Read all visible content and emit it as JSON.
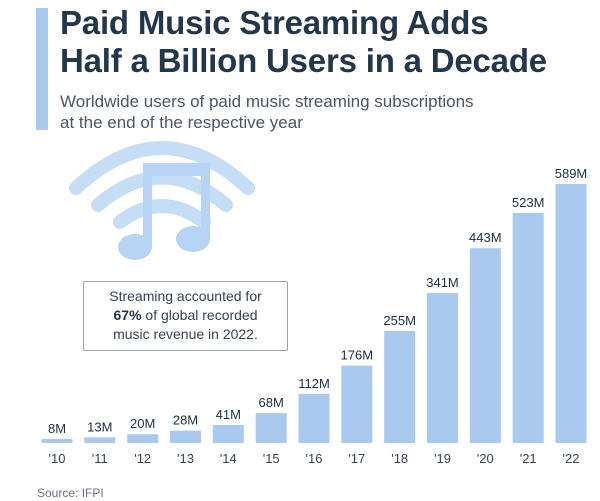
{
  "header": {
    "title_line1": "Paid Music Streaming Adds",
    "title_line2": "Half a Billion Users in a Decade",
    "subtitle_line1": "Worldwide users of paid music streaming subscriptions",
    "subtitle_line2": "at the end of the respective year"
  },
  "callout": {
    "line1": "Streaming accounted for",
    "line2_bold": "67%",
    "line2_rest": " of global recorded",
    "line3": "music revenue in 2022."
  },
  "footer": {
    "source": "Source: IFPI"
  },
  "colors": {
    "bar": "#a9c9ef",
    "icon": "#b8d4f4",
    "title": "#23364a"
  },
  "icon": {
    "name": "wifi-music-note-icon"
  },
  "chart_data": {
    "type": "bar",
    "categories": [
      "'10",
      "'11",
      "'12",
      "'13",
      "'14",
      "'15",
      "'16",
      "'17",
      "'18",
      "'19",
      "'20",
      "'21",
      "'22"
    ],
    "values": [
      8,
      13,
      20,
      28,
      41,
      68,
      112,
      176,
      255,
      341,
      443,
      523,
      589
    ],
    "value_labels": [
      "8M",
      "13M",
      "20M",
      "28M",
      "41M",
      "68M",
      "112M",
      "176M",
      "255M",
      "341M",
      "443M",
      "523M",
      "589M"
    ],
    "unit": "M",
    "ylim": [
      0,
      589
    ],
    "grid": false
  }
}
